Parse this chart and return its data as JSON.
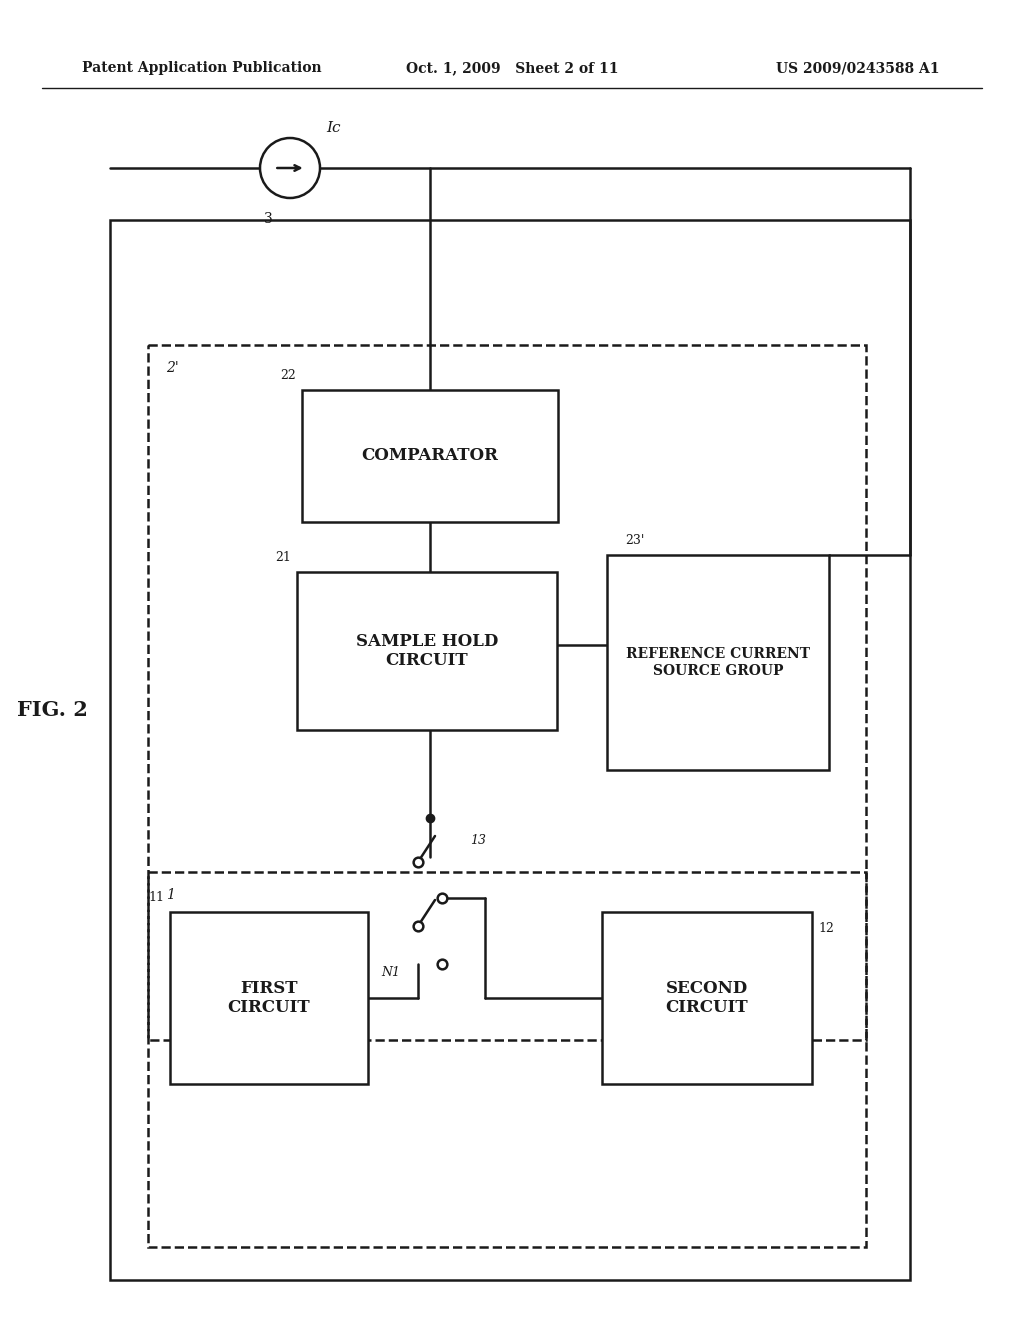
{
  "header_left": "Patent Application Publication",
  "header_mid": "Oct. 1, 2009   Sheet 2 of 11",
  "header_right": "US 2009/0243588 A1",
  "bg": "#ffffff",
  "lc": "#1a1a1a",
  "fig_label": "FIG. 2"
}
